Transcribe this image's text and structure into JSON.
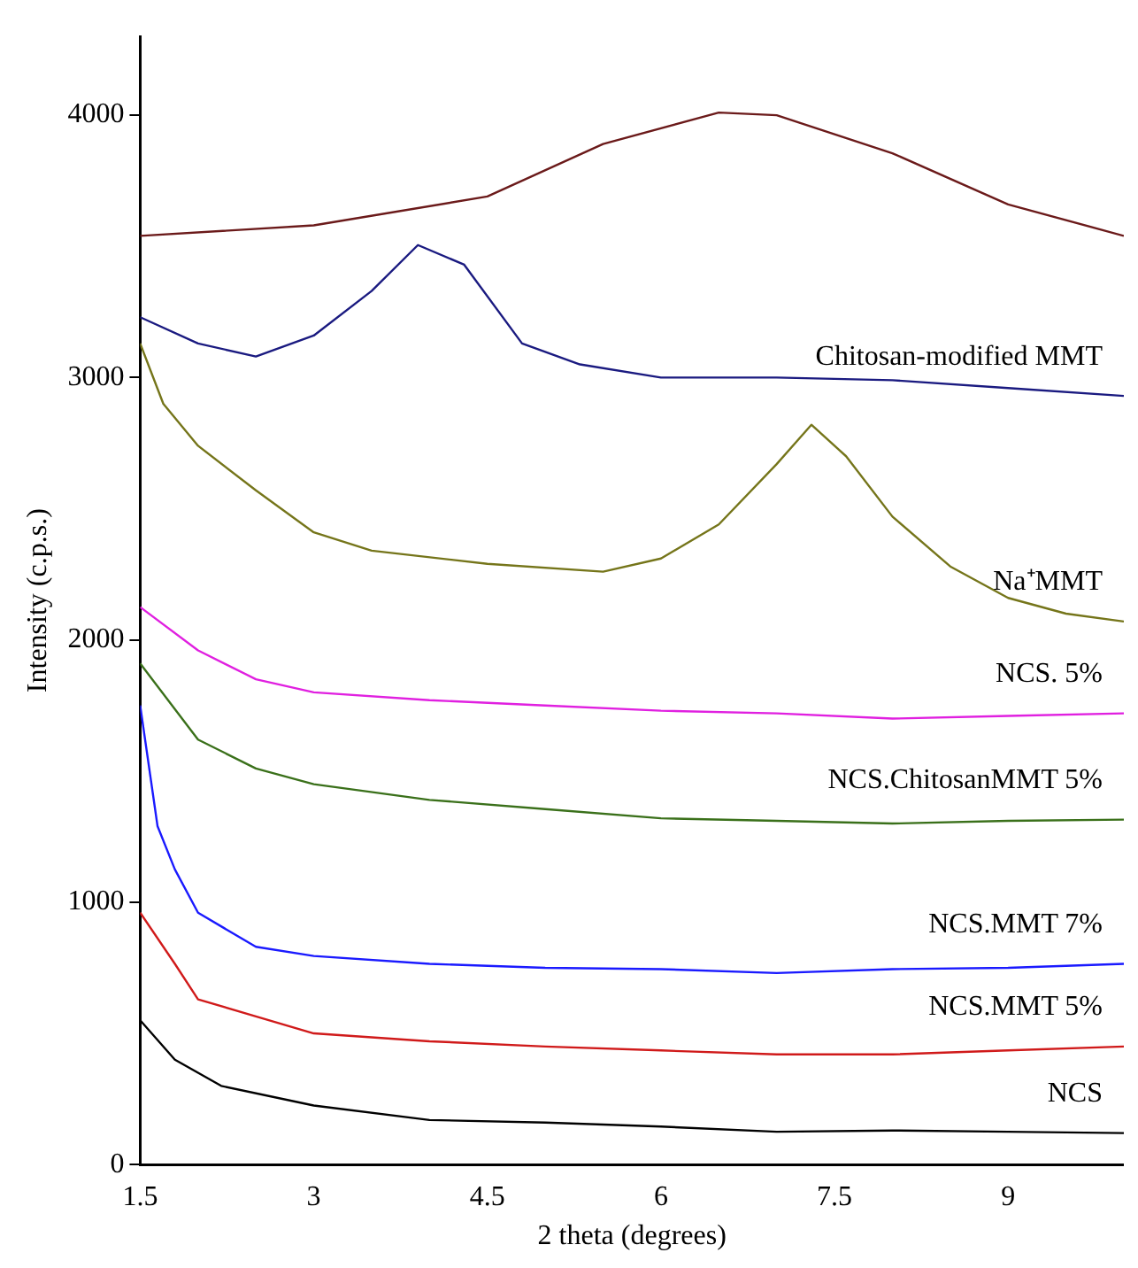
{
  "chart_data": {
    "type": "line",
    "xlabel": "2 theta (degrees)",
    "ylabel": "Intensity (c.p.s.)",
    "xlim": [
      1.5,
      10
    ],
    "ylim": [
      0,
      4300
    ],
    "xticks": [
      1.5,
      3,
      4.5,
      6,
      7.5,
      9
    ],
    "yticks": [
      0,
      1000,
      2000,
      3000,
      4000
    ],
    "grid": false,
    "legend": false,
    "marker": "none",
    "line_style": "solid",
    "series": [
      {
        "color": "#6b1a1a",
        "x": [
          1.5,
          3,
          4.5,
          5.5,
          6.5,
          7,
          8,
          9,
          10
        ],
        "values": [
          3540,
          3580,
          3690,
          3890,
          4010,
          4000,
          3855,
          3660,
          3540
        ]
      },
      {
        "name": "Chitosan-modified MMT",
        "color": "#1a1a80",
        "x": [
          1.5,
          2,
          2.5,
          3,
          3.5,
          3.9,
          4.3,
          4.8,
          5.3,
          6,
          7,
          8,
          9,
          10
        ],
        "values": [
          3230,
          3130,
          3080,
          3160,
          3330,
          3505,
          3430,
          3130,
          3050,
          3000,
          3000,
          2990,
          2960,
          2930
        ]
      },
      {
        "name": "Na⁺MMT",
        "color": "#75751a",
        "x": [
          1.5,
          1.7,
          2,
          2.5,
          3,
          3.5,
          4.5,
          5.5,
          6,
          6.5,
          7,
          7.3,
          7.6,
          8,
          8.5,
          9,
          9.5,
          10
        ],
        "values": [
          3130,
          2900,
          2740,
          2570,
          2410,
          2340,
          2290,
          2260,
          2310,
          2440,
          2670,
          2820,
          2700,
          2470,
          2280,
          2160,
          2100,
          2070
        ]
      },
      {
        "name": "NCS. 5%",
        "color": "#e020e0",
        "x": [
          1.5,
          2,
          2.5,
          3,
          4,
          5,
          6,
          7,
          8,
          9,
          10
        ],
        "values": [
          2125,
          1960,
          1850,
          1800,
          1770,
          1750,
          1730,
          1720,
          1700,
          1710,
          1720
        ]
      },
      {
        "name": "NCS.ChitosanMMT 5%",
        "color": "#3a701a",
        "x": [
          1.5,
          2,
          2.5,
          3,
          4,
          5,
          6,
          7,
          8,
          9,
          10
        ],
        "values": [
          1910,
          1620,
          1510,
          1450,
          1390,
          1355,
          1320,
          1310,
          1300,
          1310,
          1315
        ]
      },
      {
        "name": "NCS.MMT 7%",
        "color": "#1a1aff",
        "x": [
          1.5,
          1.65,
          1.8,
          2,
          2.5,
          3,
          4,
          5,
          6,
          7,
          8,
          9,
          10
        ],
        "values": [
          1750,
          1290,
          1125,
          960,
          830,
          795,
          765,
          750,
          745,
          730,
          745,
          750,
          765
        ]
      },
      {
        "name": "NCS.MMT 5%",
        "color": "#d01a1a",
        "x": [
          1.5,
          1.8,
          2,
          2.5,
          3,
          4,
          5,
          6,
          7,
          8,
          9,
          10
        ],
        "values": [
          960,
          765,
          630,
          565,
          500,
          470,
          450,
          435,
          420,
          420,
          435,
          450
        ]
      },
      {
        "name": "NCS",
        "color": "#000000",
        "x": [
          1.5,
          1.8,
          2.2,
          3,
          4,
          5,
          6,
          7,
          8,
          9,
          10
        ],
        "values": [
          550,
          400,
          300,
          225,
          170,
          160,
          145,
          125,
          130,
          125,
          120
        ]
      }
    ]
  }
}
